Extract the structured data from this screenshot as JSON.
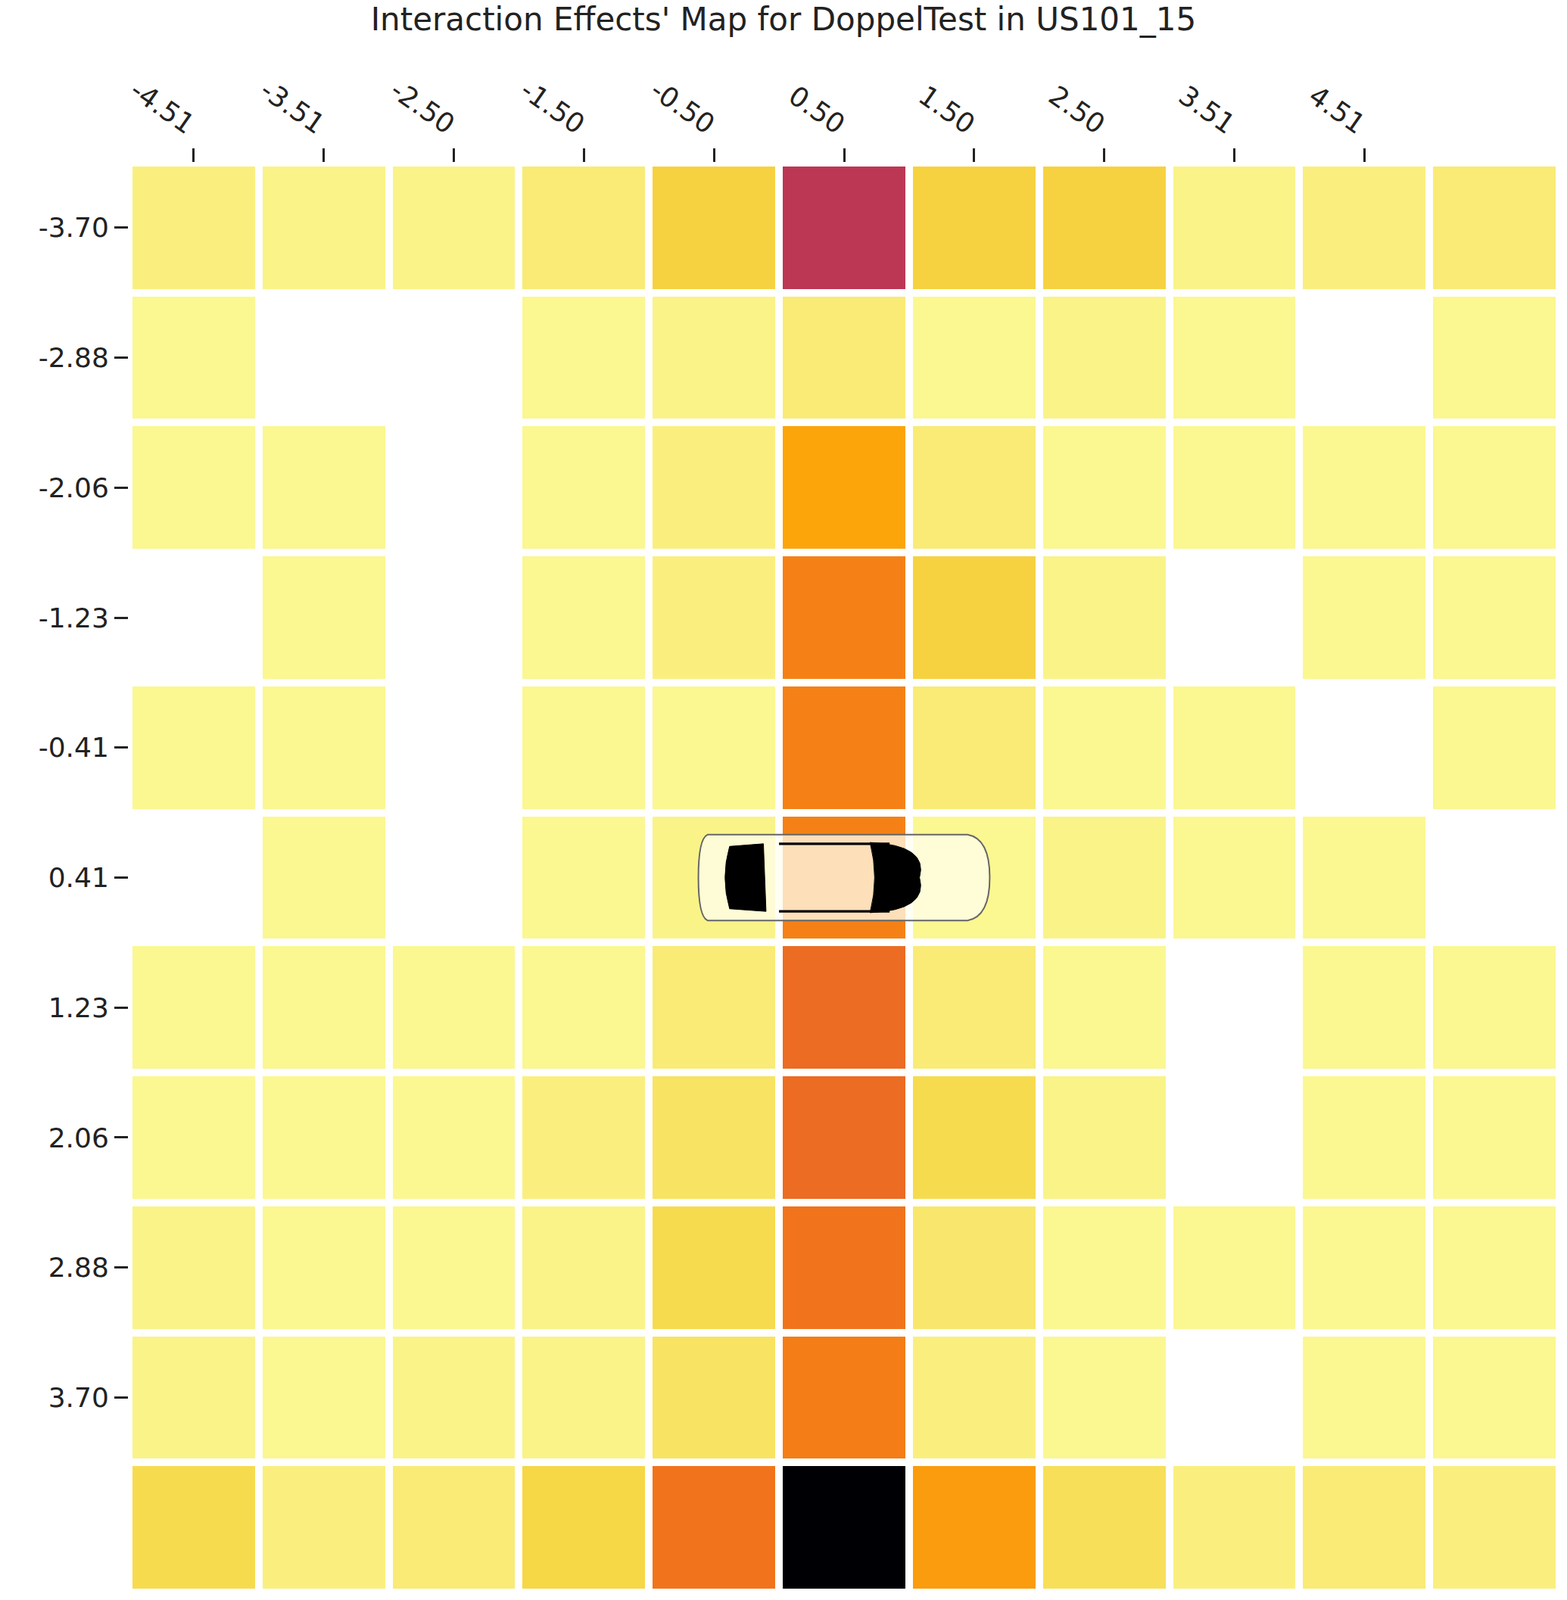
{
  "chart_data": {
    "type": "heatmap",
    "title": "Interaction Effects' Map for DoppelTest in US101_15",
    "x": [
      "-4.51",
      "-3.51",
      "-2.50",
      "-1.50",
      "-0.50",
      "0.50",
      "1.50",
      "2.50",
      "3.51",
      "4.51",
      null
    ],
    "y": [
      "-3.70",
      "-2.88",
      "-2.06",
      "-1.23",
      "-0.41",
      "0.41",
      "1.23",
      "2.06",
      "2.88",
      "3.70",
      null
    ],
    "values": [
      [
        0.04,
        0.03,
        0.03,
        0.05,
        0.11,
        0.5,
        0.11,
        0.11,
        0.03,
        0.04,
        0.05
      ],
      [
        0.02,
        null,
        null,
        0.02,
        0.03,
        0.05,
        0.02,
        0.03,
        0.02,
        null,
        0.02
      ],
      [
        0.02,
        0.02,
        null,
        0.02,
        0.04,
        0.2,
        0.05,
        0.02,
        0.02,
        0.02,
        0.02
      ],
      [
        null,
        0.02,
        null,
        0.02,
        0.04,
        0.28,
        0.11,
        0.03,
        null,
        0.02,
        0.02
      ],
      [
        0.02,
        0.02,
        null,
        0.02,
        0.02,
        0.28,
        0.05,
        0.02,
        0.02,
        null,
        0.02
      ],
      [
        null,
        0.02,
        null,
        0.02,
        0.03,
        0.28,
        0.02,
        0.03,
        0.02,
        0.02,
        null
      ],
      [
        0.02,
        0.02,
        0.02,
        0.02,
        0.05,
        0.33,
        0.05,
        0.02,
        null,
        0.02,
        0.02
      ],
      [
        0.02,
        0.02,
        0.02,
        0.04,
        0.07,
        0.33,
        0.09,
        0.03,
        null,
        0.02,
        0.02
      ],
      [
        0.03,
        0.02,
        0.02,
        0.03,
        0.09,
        0.31,
        0.06,
        0.02,
        0.02,
        0.02,
        0.02
      ],
      [
        0.03,
        0.02,
        0.03,
        0.03,
        0.07,
        0.29,
        0.04,
        0.02,
        null,
        0.02,
        0.02
      ],
      [
        0.09,
        0.04,
        0.05,
        0.1,
        0.31,
        1.0,
        0.22,
        0.08,
        0.04,
        0.05,
        0.04
      ]
    ],
    "zlim": [
      0,
      1
    ]
  }
}
